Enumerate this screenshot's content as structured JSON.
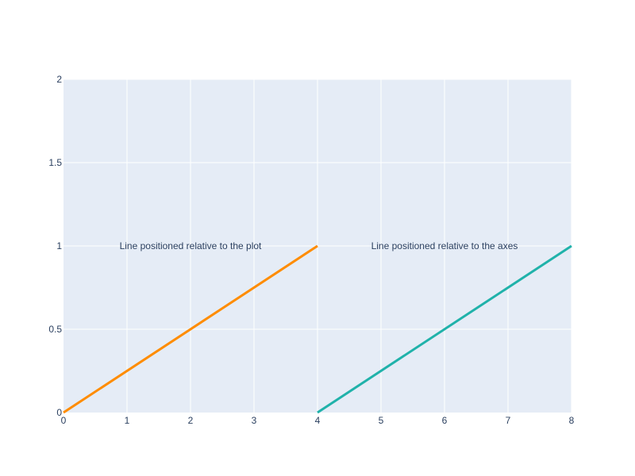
{
  "chart_data": {
    "type": "line",
    "xlim": [
      0,
      8
    ],
    "ylim": [
      0,
      2
    ],
    "x_ticks": [
      0,
      1,
      2,
      3,
      4,
      5,
      6,
      7,
      8
    ],
    "y_ticks": [
      0,
      0.5,
      1,
      1.5,
      2
    ],
    "x_tick_labels": [
      "0",
      "1",
      "2",
      "3",
      "4",
      "5",
      "6",
      "7",
      "8"
    ],
    "y_tick_labels": [
      "0",
      "0.5",
      "1",
      "1.5",
      "2"
    ],
    "grid": true,
    "colors": {
      "plot_bg": "#e5ecf6",
      "grid": "#ffffff",
      "text": "#2a3f5f"
    },
    "series": [
      {
        "x": [
          0,
          4
        ],
        "y": [
          0,
          1
        ],
        "color": "#ff8c00"
      },
      {
        "x": [
          4,
          8
        ],
        "y": [
          0,
          1
        ],
        "color": "#20b2aa"
      }
    ],
    "annotations": [
      {
        "text": "Line positioned relative to the plot",
        "x": 2,
        "y": 1
      },
      {
        "text": "Line positioned relative to the axes",
        "x": 6,
        "y": 1
      }
    ]
  }
}
